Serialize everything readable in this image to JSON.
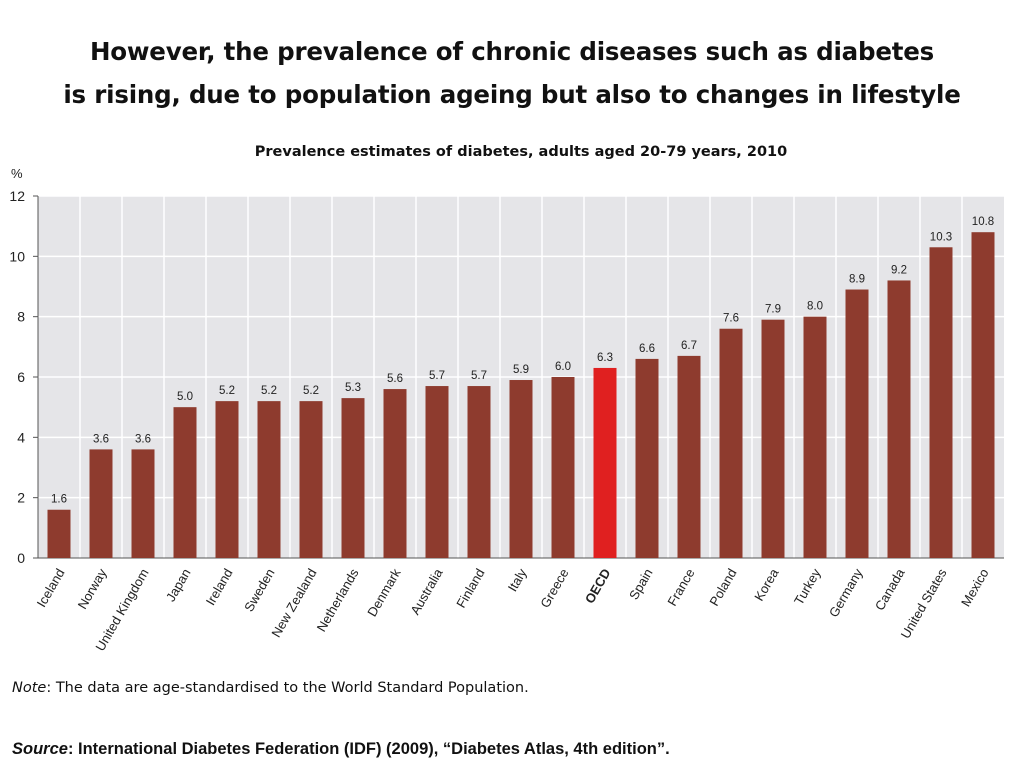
{
  "slide": {
    "title_line1": "However, the prevalence of chronic diseases such as diabetes",
    "title_line2": "is rising, due to population ageing but also to changes in lifestyle"
  },
  "note": {
    "label": "Note",
    "text": ": The data are age-standardised to the World Standard Population."
  },
  "source": {
    "label": "Source",
    "text": ": International Diabetes Federation (IDF) (2009), “Diabetes Atlas, 4th edition”."
  },
  "chart_data": {
    "type": "bar",
    "title": "Prevalence estimates of diabetes, adults aged 20-79 years, 2010",
    "ylabel": "%",
    "xlabel": "",
    "ylim": [
      0,
      12
    ],
    "yticks": [
      0,
      2,
      4,
      6,
      8,
      10,
      12
    ],
    "grid": true,
    "categories": [
      "Iceland",
      "Norway",
      "United Kingdom",
      "Japan",
      "Ireland",
      "Sweden",
      "New Zealand",
      "Netherlands",
      "Denmark",
      "Australia",
      "Finland",
      "Italy",
      "Greece",
      "OECD",
      "Spain",
      "France",
      "Poland",
      "Korea",
      "Turkey",
      "Germany",
      "Canada",
      "United States",
      "Mexico"
    ],
    "values": [
      1.6,
      3.6,
      3.6,
      5.0,
      5.2,
      5.2,
      5.2,
      5.3,
      5.6,
      5.7,
      5.7,
      5.9,
      6.0,
      6.3,
      6.6,
      6.7,
      7.6,
      7.9,
      8.0,
      8.9,
      9.2,
      10.3,
      10.8
    ],
    "value_labels": [
      "1.6",
      "3.6",
      "3.6",
      "5.0",
      "5.2",
      "5.2",
      "5.2",
      "5.3",
      "5.6",
      "5.7",
      "5.7",
      "5.9",
      "6.0",
      "6.3",
      "6.6",
      "6.7",
      "7.6",
      "7.9",
      "8.0",
      "8.9",
      "9.2",
      "10.3",
      "10.8"
    ],
    "highlight_category": "OECD",
    "colors": {
      "bar": "#8e3b2e",
      "highlight": "#e02020",
      "plot_bg": "#e5e5e8",
      "gridline": "#ffffff"
    }
  }
}
